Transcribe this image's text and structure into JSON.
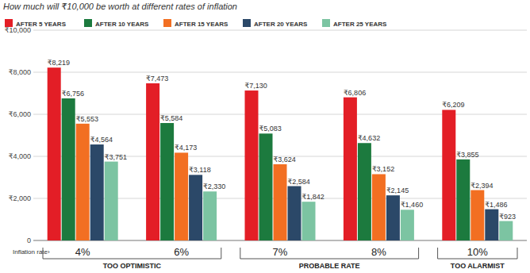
{
  "chart_data": {
    "type": "bar",
    "title": "How much will ₹10,000 be worth at different rates of inflation",
    "x_label": "Inflation rate›",
    "categories": [
      "4%",
      "6%",
      "7%",
      "8%",
      "10%"
    ],
    "series": [
      {
        "name": "AFTER 5 YEARS",
        "color": "#e31e26",
        "values": [
          8219,
          7473,
          7130,
          6806,
          6209
        ],
        "value_labels": [
          "₹8,219",
          "₹7,473",
          "₹7,130",
          "₹6,806",
          "₹6,209"
        ]
      },
      {
        "name": "AFTER 10 YEARS",
        "color": "#1c7a3e",
        "values": [
          6756,
          5584,
          5083,
          4632,
          3855
        ],
        "value_labels": [
          "₹6,756",
          "₹5,584",
          "₹5,083",
          "₹4,632",
          "₹3,855"
        ]
      },
      {
        "name": "AFTER 15 YEARS",
        "color": "#f26f22",
        "values": [
          5553,
          4173,
          3624,
          3152,
          2394
        ],
        "value_labels": [
          "₹5,553",
          "₹4,173",
          "₹3,624",
          "₹3,152",
          "₹2,394"
        ]
      },
      {
        "name": "AFTER 20 YEARS",
        "color": "#2b4868",
        "values": [
          4564,
          3118,
          2584,
          2145,
          1486
        ],
        "value_labels": [
          "₹4,564",
          "₹3,118",
          "₹2,584",
          "₹2,145",
          "₹1,486"
        ]
      },
      {
        "name": "AFTER 25 YEARS",
        "color": "#7cc4a2",
        "values": [
          3751,
          2330,
          1842,
          1460,
          923
        ],
        "value_labels": [
          "₹3,751",
          "₹2,330",
          "₹1,842",
          "₹1,460",
          "₹923"
        ]
      }
    ],
    "ylim": [
      0,
      10000
    ],
    "yticks": [
      0,
      {
        "value": 2000,
        "label": "₹2,000"
      },
      {
        "value": 4000,
        "label": "₹4,000"
      },
      {
        "value": 6000,
        "label": "₹6,000"
      },
      {
        "value": 8000,
        "label": "₹8,000"
      },
      {
        "value": 10000,
        "label": "₹10,000"
      }
    ],
    "grid": true,
    "legend": "top",
    "data_labels": true,
    "annotations": [
      {
        "text": "TOO OPTIMISTIC",
        "from": "4%",
        "to": "6%"
      },
      {
        "text": "PROBABLE RATE",
        "from": "7%",
        "to": "8%"
      },
      {
        "text": "TOO ALARMIST",
        "from": "10%",
        "to": "10%"
      }
    ]
  }
}
